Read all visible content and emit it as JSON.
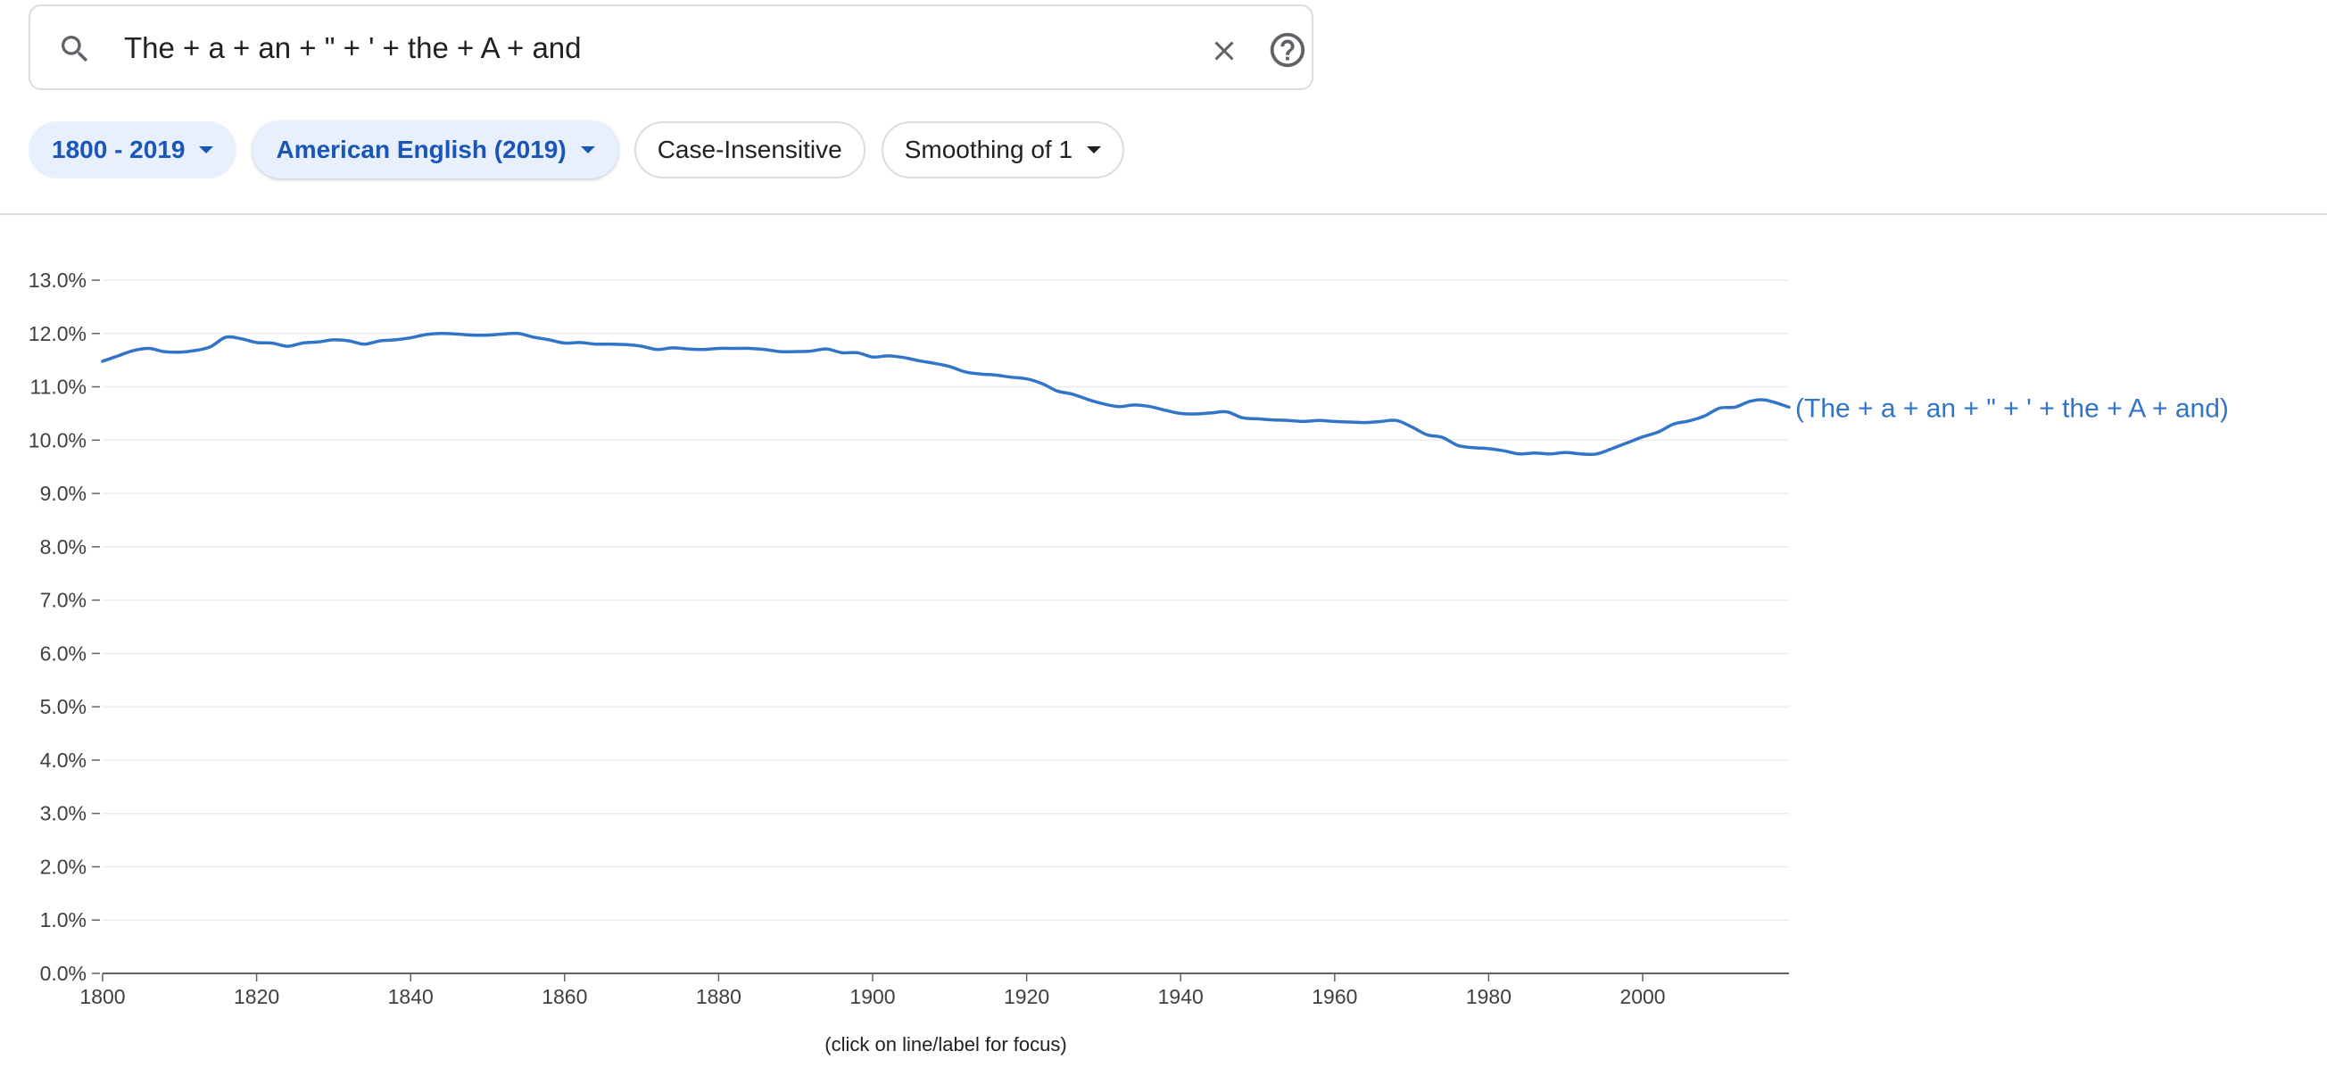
{
  "search": {
    "query": "The + a + an + \" + ' + the + A + and",
    "search_icon": "search-icon",
    "clear_icon": "close-icon",
    "help_icon": "help-circle-icon"
  },
  "filters": {
    "date_range": "1800 - 2019",
    "corpus": "American English (2019)",
    "case": "Case-Insensitive",
    "smoothing": "Smoothing of 1"
  },
  "footnote": "(click on line/label for focus)",
  "colors": {
    "accent": "#1a56b8",
    "chip_bg": "#e8f0fe",
    "line": "#3274c8"
  },
  "chart_data": {
    "type": "line",
    "title": "",
    "xlabel": "",
    "ylabel": "",
    "xlim": [
      1800,
      2019
    ],
    "ylim": [
      0,
      13
    ],
    "y_ticks": [
      "0.0%",
      "1.0%",
      "2.0%",
      "3.0%",
      "4.0%",
      "5.0%",
      "6.0%",
      "7.0%",
      "8.0%",
      "9.0%",
      "10.0%",
      "11.0%",
      "12.0%",
      "13.0%"
    ],
    "x_ticks": [
      "1800",
      "1820",
      "1840",
      "1860",
      "1880",
      "1900",
      "1920",
      "1940",
      "1960",
      "1980",
      "2000"
    ],
    "grid": true,
    "legend": "label at end of line (right)",
    "series": [
      {
        "name": "(The + a + an + \" + ' + the + A + and)",
        "x": [
          1800,
          1802,
          1804,
          1806,
          1808,
          1810,
          1812,
          1814,
          1816,
          1818,
          1820,
          1822,
          1824,
          1826,
          1828,
          1830,
          1832,
          1834,
          1836,
          1838,
          1840,
          1842,
          1844,
          1846,
          1848,
          1850,
          1852,
          1854,
          1856,
          1858,
          1860,
          1862,
          1864,
          1866,
          1868,
          1870,
          1872,
          1874,
          1876,
          1878,
          1880,
          1882,
          1884,
          1886,
          1888,
          1890,
          1892,
          1894,
          1896,
          1898,
          1900,
          1902,
          1904,
          1906,
          1908,
          1910,
          1912,
          1914,
          1916,
          1918,
          1920,
          1922,
          1924,
          1926,
          1928,
          1930,
          1932,
          1934,
          1936,
          1938,
          1940,
          1942,
          1944,
          1946,
          1948,
          1950,
          1952,
          1954,
          1956,
          1958,
          1960,
          1962,
          1964,
          1966,
          1968,
          1970,
          1972,
          1974,
          1976,
          1978,
          1980,
          1982,
          1984,
          1986,
          1988,
          1990,
          1992,
          1994,
          1996,
          1998,
          2000,
          2002,
          2004,
          2006,
          2008,
          2010,
          2012,
          2014,
          2016,
          2019
        ],
        "values": [
          11.48,
          11.58,
          11.68,
          11.72,
          11.66,
          11.65,
          11.68,
          11.75,
          11.93,
          11.9,
          11.83,
          11.82,
          11.76,
          11.82,
          11.84,
          11.88,
          11.86,
          11.8,
          11.86,
          11.88,
          11.92,
          11.98,
          12.0,
          11.99,
          11.97,
          11.97,
          11.99,
          12.0,
          11.93,
          11.88,
          11.82,
          11.83,
          11.8,
          11.8,
          11.79,
          11.76,
          11.7,
          11.73,
          11.71,
          11.7,
          11.72,
          11.72,
          11.72,
          11.7,
          11.66,
          11.66,
          11.67,
          11.71,
          11.64,
          11.64,
          11.56,
          11.58,
          11.55,
          11.49,
          11.44,
          11.38,
          11.28,
          11.24,
          11.22,
          11.18,
          11.15,
          11.06,
          10.92,
          10.86,
          10.76,
          10.68,
          10.63,
          10.66,
          10.63,
          10.56,
          10.5,
          10.49,
          10.51,
          10.53,
          10.42,
          10.4,
          10.38,
          10.37,
          10.35,
          10.37,
          10.35,
          10.34,
          10.33,
          10.35,
          10.37,
          10.25,
          10.1,
          10.05,
          9.9,
          9.86,
          9.84,
          9.8,
          9.74,
          9.76,
          9.74,
          9.77,
          9.74,
          9.74,
          9.84,
          9.95,
          10.06,
          10.15,
          10.3,
          10.36,
          10.45,
          10.6,
          10.62,
          10.73,
          10.75,
          10.62
        ]
      }
    ]
  }
}
